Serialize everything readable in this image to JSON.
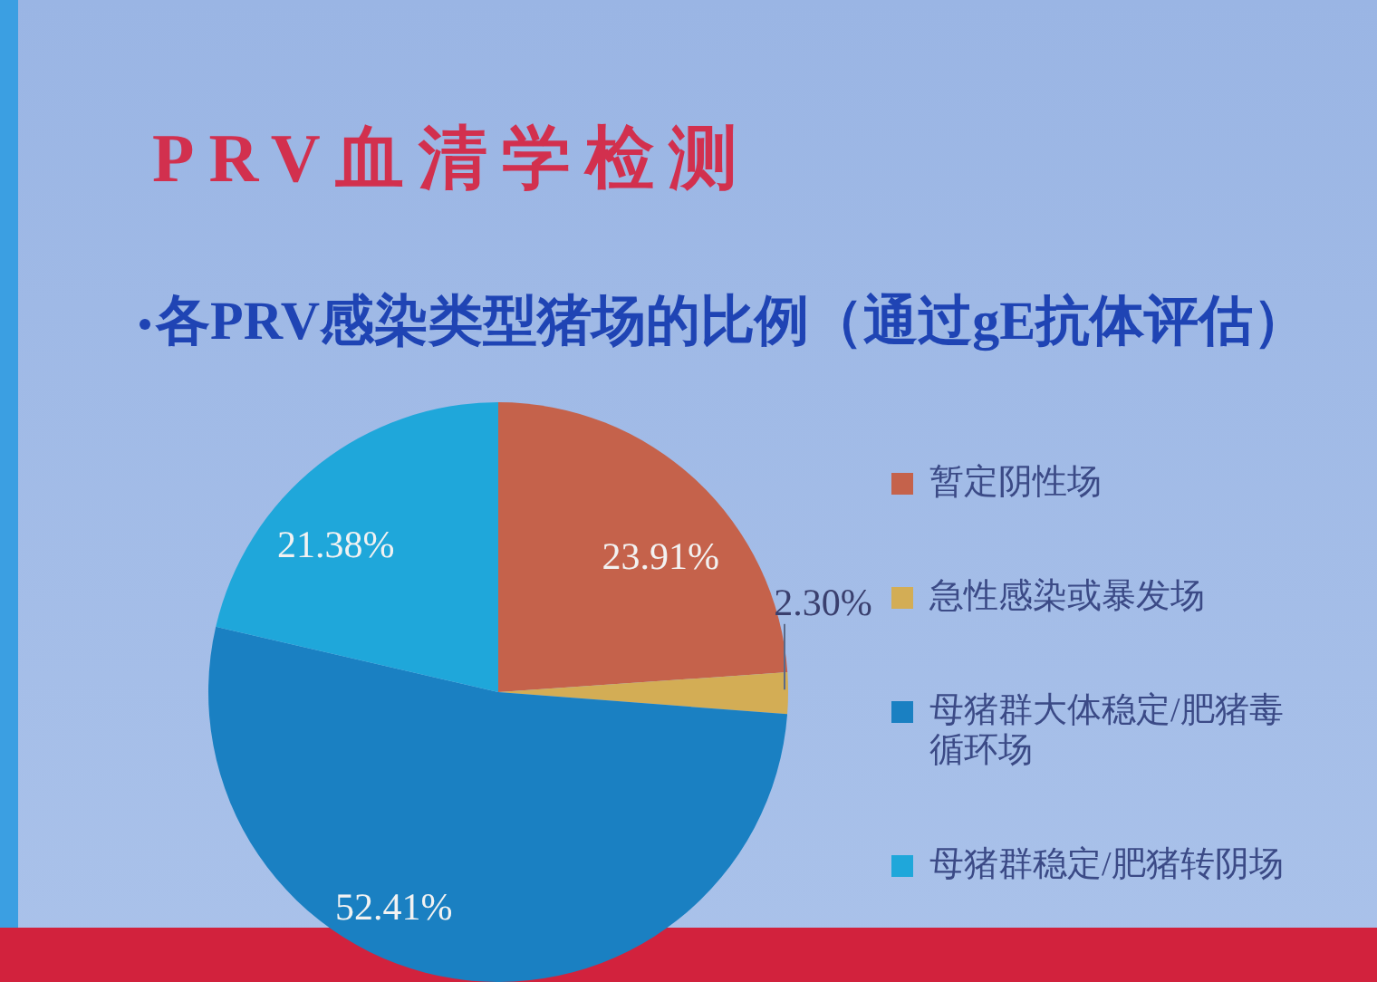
{
  "chart_data": {
    "type": "pie",
    "title": "PRV血清学检测",
    "subtitle": "各PRV感染类型猪场的比例（通过gE抗体评估）",
    "categories": [
      "暂定阴性场",
      "急性感染或暴发场",
      "母猪群大体稳定/肥猪毒循环场",
      "母猪群稳定/肥猪转阴场"
    ],
    "values": [
      23.91,
      2.3,
      52.41,
      21.38
    ],
    "colors": [
      "#c5624b",
      "#d3ad55",
      "#1a80c2",
      "#1fa7da"
    ],
    "value_labels": [
      "23.91%",
      "2.30%",
      "52.41%",
      "21.38%"
    ],
    "legend": "right"
  }
}
